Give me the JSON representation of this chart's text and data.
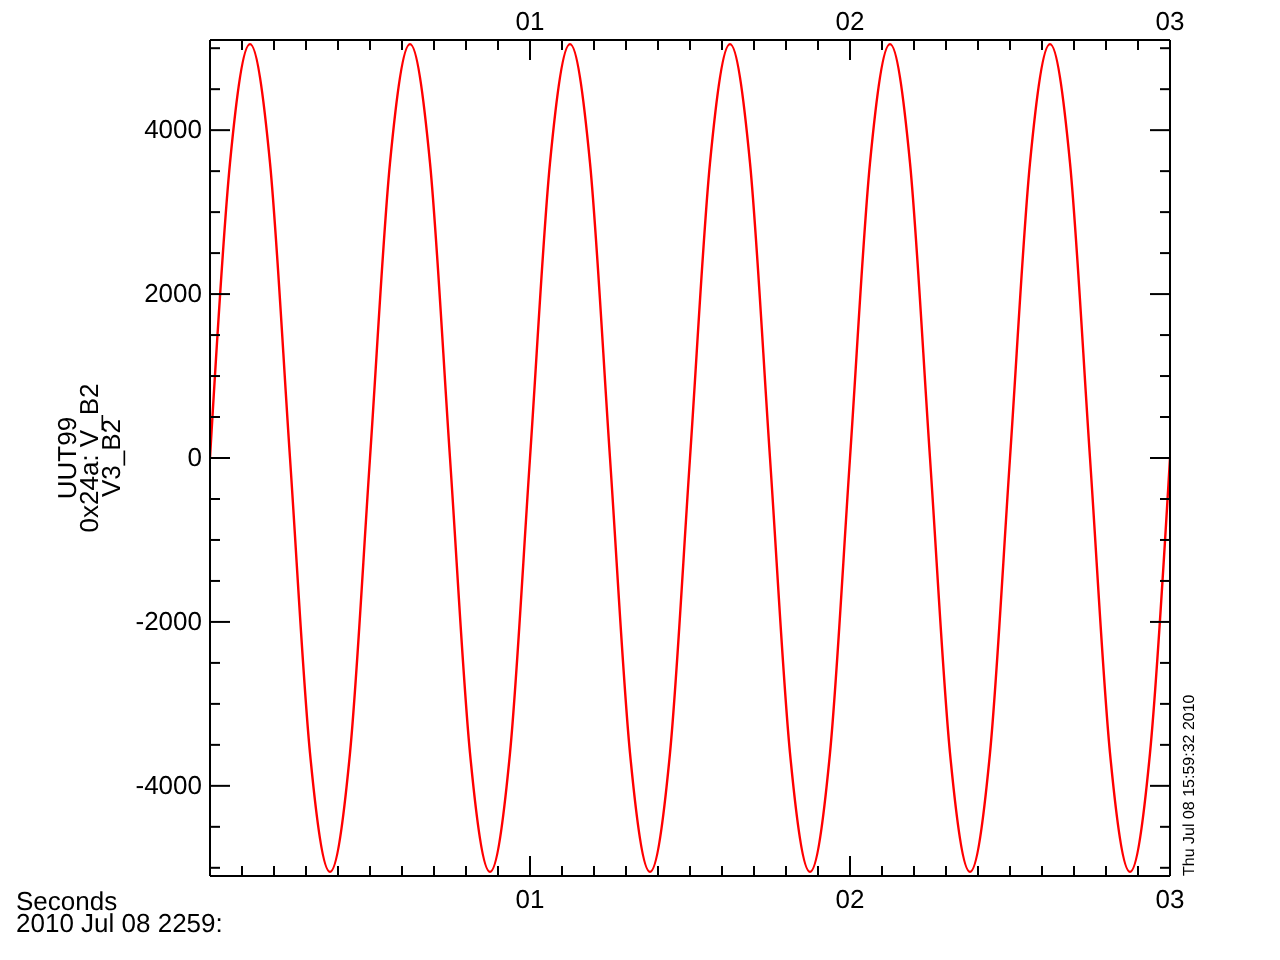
{
  "chart_data": {
    "type": "line",
    "ylabel": "UUT99\n0x24a: V_B2\nV3_B2",
    "xlabel": "Seconds\n2010 Jul 08 2259:",
    "annotations": [
      "Thu Jul 08 15:59:32 2010"
    ],
    "x": [
      0,
      0.0625,
      0.125,
      0.1875,
      0.25,
      0.3125,
      0.375,
      0.4375,
      0.5,
      0.5625,
      0.625,
      0.6875,
      0.75,
      0.8125,
      0.875,
      0.9375,
      1,
      1.0625,
      1.125,
      1.1875,
      1.25,
      1.3125,
      1.375,
      1.4375,
      1.5,
      1.5625,
      1.625,
      1.6875,
      1.75,
      1.8125,
      1.875,
      1.9375,
      2,
      2.0625,
      2.125,
      2.1875,
      2.25,
      2.3125,
      2.375,
      2.4375,
      2.5,
      2.5625,
      2.625,
      2.6875,
      2.75,
      2.8125,
      2.875,
      2.9375,
      3
    ],
    "series": [
      {
        "color": "#ff0000",
        "values": [
          0,
          3600,
          5050,
          3600,
          0,
          -3600,
          -5050,
          -3600,
          0,
          3600,
          5050,
          3600,
          0,
          -3600,
          -5050,
          -3600,
          0,
          3600,
          5050,
          3600,
          0,
          -3600,
          -5050,
          -3600,
          0,
          3600,
          5050,
          3600,
          0,
          -3600,
          -5050,
          -3600,
          0,
          3600,
          5050,
          3600,
          0,
          -3600,
          -5050,
          -3600,
          0,
          3600,
          5050,
          3600,
          0,
          -3600,
          -5050,
          -3600,
          0
        ]
      }
    ],
    "marker": "none",
    "xlim": [
      0,
      3
    ],
    "xticks": [
      {
        "value": 0.1,
        "label": null
      },
      {
        "value": 0.2,
        "label": null
      },
      {
        "value": 0.3,
        "label": null
      },
      {
        "value": 0.4,
        "label": null
      },
      {
        "value": 0.5,
        "label": null
      },
      {
        "value": 0.6,
        "label": null
      },
      {
        "value": 0.7,
        "label": null
      },
      {
        "value": 0.8,
        "label": null
      },
      {
        "value": 0.9,
        "label": null
      },
      {
        "value": 1,
        "label": "01"
      },
      {
        "value": 1.1,
        "label": null
      },
      {
        "value": 1.2,
        "label": null
      },
      {
        "value": 1.3,
        "label": null
      },
      {
        "value": 1.4,
        "label": null
      },
      {
        "value": 1.5,
        "label": null
      },
      {
        "value": 1.6,
        "label": null
      },
      {
        "value": 1.7,
        "label": null
      },
      {
        "value": 1.8,
        "label": null
      },
      {
        "value": 1.9,
        "label": null
      },
      {
        "value": 2,
        "label": "02"
      },
      {
        "value": 2.1,
        "label": null
      },
      {
        "value": 2.2,
        "label": null
      },
      {
        "value": 2.3,
        "label": null
      },
      {
        "value": 2.4,
        "label": null
      },
      {
        "value": 2.5,
        "label": null
      },
      {
        "value": 2.6,
        "label": null
      },
      {
        "value": 2.7,
        "label": null
      },
      {
        "value": 2.8,
        "label": null
      },
      {
        "value": 2.9,
        "label": null
      },
      {
        "value": 3,
        "label": "03"
      }
    ],
    "x2lim": [
      0,
      3
    ],
    "x2ticks": [
      {
        "value": 0.1,
        "label": null
      },
      {
        "value": 0.2,
        "label": null
      },
      {
        "value": 0.3,
        "label": null
      },
      {
        "value": 0.4,
        "label": null
      },
      {
        "value": 0.5,
        "label": null
      },
      {
        "value": 0.6,
        "label": null
      },
      {
        "value": 0.7,
        "label": null
      },
      {
        "value": 0.8,
        "label": null
      },
      {
        "value": 0.9,
        "label": null
      },
      {
        "value": 1,
        "label": "01"
      },
      {
        "value": 1.1,
        "label": null
      },
      {
        "value": 1.2,
        "label": null
      },
      {
        "value": 1.3,
        "label": null
      },
      {
        "value": 1.4,
        "label": null
      },
      {
        "value": 1.5,
        "label": null
      },
      {
        "value": 1.6,
        "label": null
      },
      {
        "value": 1.7,
        "label": null
      },
      {
        "value": 1.8,
        "label": null
      },
      {
        "value": 1.9,
        "label": null
      },
      {
        "value": 2,
        "label": "02"
      },
      {
        "value": 2.1,
        "label": null
      },
      {
        "value": 2.2,
        "label": null
      },
      {
        "value": 2.3,
        "label": null
      },
      {
        "value": 2.4,
        "label": null
      },
      {
        "value": 2.5,
        "label": null
      },
      {
        "value": 2.6,
        "label": null
      },
      {
        "value": 2.7,
        "label": null
      },
      {
        "value": 2.8,
        "label": null
      },
      {
        "value": 2.9,
        "label": null
      },
      {
        "value": 3,
        "label": "03"
      }
    ],
    "ylim": [
      -5100,
      5100
    ],
    "yticks": [
      {
        "value": -5000,
        "label": null
      },
      {
        "value": -4500,
        "label": null
      },
      -4000,
      {
        "value": -3500,
        "label": null
      },
      {
        "value": -3000,
        "label": null
      },
      {
        "value": -2500,
        "label": null
      },
      -2000,
      {
        "value": -1500,
        "label": null
      },
      {
        "value": -1000,
        "label": null
      },
      {
        "value": -500,
        "label": null
      },
      0,
      {
        "value": 500,
        "label": null
      },
      {
        "value": 1000,
        "label": null
      },
      {
        "value": 1500,
        "label": null
      },
      2000,
      {
        "value": 2500,
        "label": null
      },
      {
        "value": 3000,
        "label": null
      },
      {
        "value": 3500,
        "label": null
      },
      4000,
      {
        "value": 4500,
        "label": null
      },
      {
        "value": 5000,
        "label": null
      }
    ]
  }
}
